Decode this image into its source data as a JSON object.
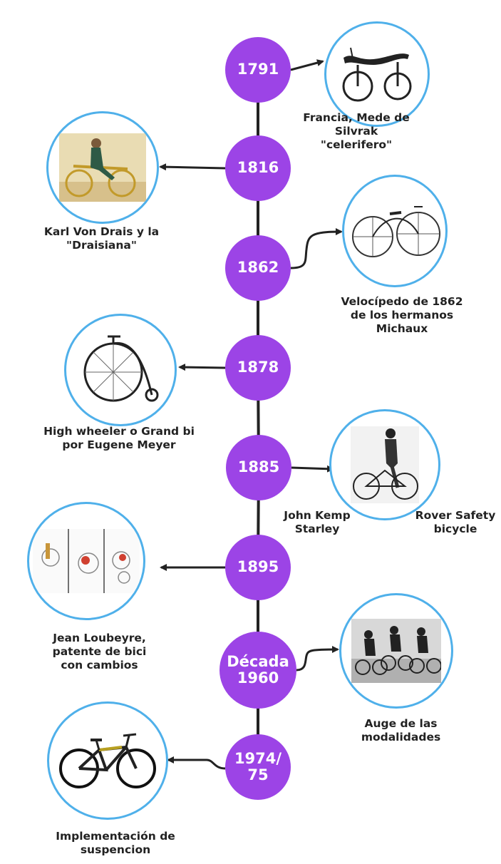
{
  "timeline": {
    "accent_color": "#9c44e6",
    "ring_color": "#4fb0ea",
    "line_color": "#222222",
    "events": [
      {
        "year": "1791",
        "caption": "Francia, Mede de Silvrak\n\"celerifero\"",
        "image": "celerifero-illustration"
      },
      {
        "year": "1816",
        "caption": "Karl Von Drais y la\n\"Draisiana\"",
        "image": "draisiana-painting"
      },
      {
        "year": "1862",
        "caption": "Velocípedo de 1862\nde los hermanos\nMichaux",
        "image": "velocipede-drawing"
      },
      {
        "year": "1878",
        "caption": "High wheeler o Grand bi\npor Eugene Meyer",
        "image": "penny-farthing-photo"
      },
      {
        "year": "1885",
        "caption": "John Kemp\nStarley",
        "caption2": "Rover Safety\nbicycle",
        "image": "rover-safety-photo"
      },
      {
        "year": "1895",
        "caption": "Jean Loubeyre,\npatente de bici\ncon cambios",
        "image": "derailleur-patent-drawings"
      },
      {
        "year": "Década\n1960",
        "caption": "Auge de las\nmodalidades",
        "image": "bmx-race-photo"
      },
      {
        "year": "1974/\n75",
        "caption": "Implementación de\nsuspencion",
        "image": "mountain-bike-photo"
      }
    ]
  }
}
